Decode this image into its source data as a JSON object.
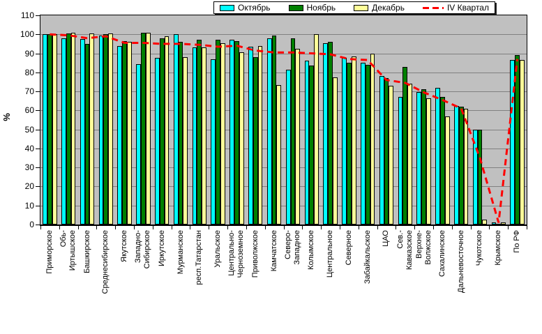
{
  "chart_data": {
    "type": "bar",
    "title": "",
    "ylabel": "%",
    "ylim": [
      0,
      110
    ],
    "y_step": 10,
    "y_tick_labels": [
      "0",
      "10",
      "20",
      "30",
      "40",
      "50",
      "60",
      "70",
      "80",
      "90",
      "100",
      "110"
    ],
    "grid": true,
    "plot_bg_color": "#C0C0C0",
    "grid_color": "#808080",
    "legend_position": "top",
    "x_labels_vertical": true,
    "categories": [
      "Приморское",
      "Обь-Иртышское",
      "Башкирское",
      "Среднесибирское",
      "Якутское",
      "Западно-Сибирское",
      "Иркутское",
      "Мурманское",
      "респ.Татарстан",
      "Уральское",
      "Центрально-Черноземное",
      "Приволжское",
      "Камчатское",
      "Северо-Западное",
      "Колымское",
      "Центральное",
      "Северное",
      "Забайкальское",
      "ЦАО",
      "Сев.-Кавказское",
      "Верхне-Волжское",
      "Сахалинское",
      "Дальневосточное",
      "Чукотское",
      "Крымское",
      "По РФ"
    ],
    "category_display": [
      "Приморское",
      "Обь-\nИртышское",
      "Башкирское",
      "Среднесибирское",
      "Якутское",
      "Западно-\nСибирское",
      "Иркутское",
      "Мурманское",
      "респ.Татарстан",
      "Уральское",
      "Центрально-\nЧерноземное",
      "Приволжское",
      "Камчатское",
      "Северо-\nЗападное",
      "Колымское",
      "Центральное",
      "Северное",
      "Забайкальское",
      "ЦАО",
      "Сев.-\nКавказское",
      "Верхне-\nВолжское",
      "Сахалинское",
      "Дальневосточное",
      "Чукотское",
      "Крымское",
      "По РФ"
    ],
    "series": [
      {
        "name": "Октябрь",
        "type": "bar",
        "color": "#00FFFF",
        "values": [
          100,
          98,
          97.5,
          99.5,
          94,
          84.5,
          87.5,
          100,
          93,
          87,
          97,
          93.5,
          98,
          81.5,
          86,
          95.5,
          87.5,
          85,
          78,
          67,
          69.5,
          72,
          62.5,
          50,
          1,
          86.5
        ]
      },
      {
        "name": "Ноябрь",
        "type": "bar",
        "color": "#008000",
        "values": [
          100,
          100.5,
          95,
          100,
          96.5,
          101,
          98,
          96,
          97,
          97,
          96.5,
          88,
          99.5,
          98,
          83.5,
          96,
          85,
          84,
          77,
          83,
          71,
          67,
          62,
          50,
          0.5,
          89
        ]
      },
      {
        "name": "Декабрь",
        "type": "bar",
        "color": "#FFFF99",
        "values": [
          100,
          101,
          100.5,
          100.5,
          96,
          101,
          99,
          88,
          93,
          95.5,
          90.5,
          94,
          73.5,
          92.5,
          100,
          77.5,
          88.5,
          90,
          73,
          74,
          66.5,
          57,
          61,
          2.5,
          1,
          86.5
        ]
      },
      {
        "name": "IV Квартал",
        "type": "line",
        "dashed": true,
        "color": "#FF0000",
        "values": [
          100,
          99.5,
          98,
          99,
          95.5,
          95.5,
          95,
          95,
          94.5,
          93.5,
          94,
          91.5,
          90.5,
          90.5,
          90,
          89.5,
          87,
          86.5,
          76,
          74.5,
          69.5,
          65.5,
          61,
          35,
          1,
          87
        ]
      }
    ]
  }
}
